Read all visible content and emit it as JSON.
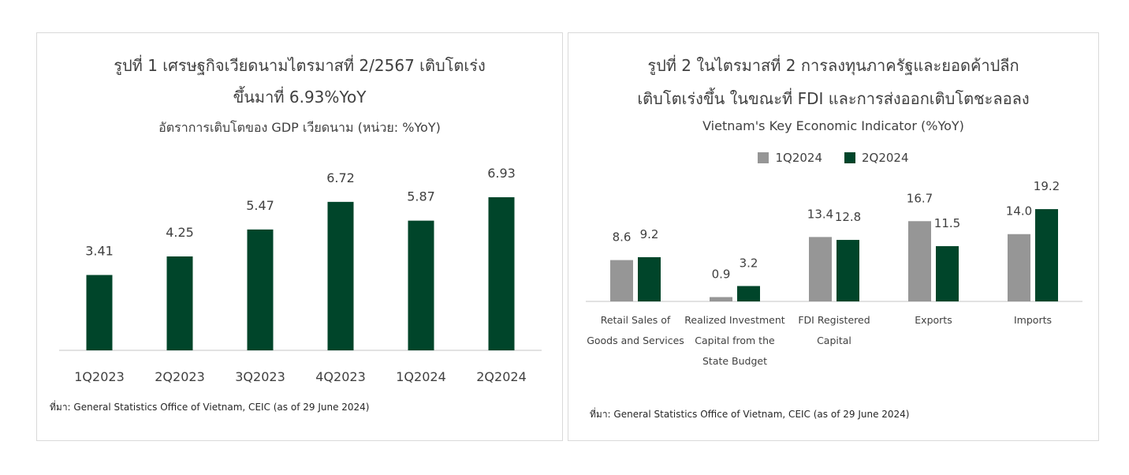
{
  "panel1": {
    "title_line1": "รูปที่ 1 เศรษฐกิจเวียดนามไตรมาสที่ 2/2567 เติบโตเร่ง",
    "title_line2": "ขึ้นมาที่ 6.93%YoY",
    "subtitle": "อัตราการเติบโตของ GDP เวียดนาม (หน่วย: %YoY)",
    "source": "ที่มา: General Statistics Office of Vietnam, CEIC (as of 29 June 2024)"
  },
  "panel2": {
    "title_line1": "รูปที่ 2 ในไตรมาสที่ 2 การลงทุนภาครัฐและยอดค้าปลีก",
    "title_line2": "เติบโตเร่งขึ้น ในขณะที่ FDI และการส่งออกเติบโตชะลอลง",
    "subtitle": "Vietnam's Key Economic Indicator (%YoY)",
    "source": "ที่มา: General Statistics Office of Vietnam, CEIC (as of 29 June 2024)"
  },
  "colors": {
    "green": "#00452a",
    "gray": "#969696",
    "axis": "#d9d9d9"
  },
  "chart_data": [
    {
      "type": "bar",
      "title": "อัตราการเติบโตของ GDP เวียดนาม (หน่วย: %YoY)",
      "categories": [
        "1Q2023",
        "2Q2023",
        "3Q2023",
        "4Q2023",
        "1Q2024",
        "2Q2024"
      ],
      "values": [
        3.41,
        4.25,
        5.47,
        6.72,
        5.87,
        6.93
      ],
      "data_labels": [
        "3.41",
        "4.25",
        "5.47",
        "6.72",
        "5.87",
        "6.93"
      ],
      "ylim": [
        0,
        7.5
      ],
      "grid": false
    },
    {
      "type": "bar",
      "title": "Vietnam's Key Economic Indicator (%YoY)",
      "categories": [
        [
          "Retail Sales of",
          "Goods and Services"
        ],
        [
          "Realized Investment",
          "Capital from the",
          "State Budget"
        ],
        [
          "FDI Registered",
          "Capital"
        ],
        [
          "Exports"
        ],
        [
          "Imports"
        ]
      ],
      "series": [
        {
          "name": "1Q2024",
          "values": [
            8.6,
            0.9,
            13.4,
            16.7,
            14.0
          ],
          "labels": [
            "8.6",
            "0.9",
            "13.4",
            "16.7",
            "14.0"
          ]
        },
        {
          "name": "2Q2024",
          "values": [
            9.2,
            3.2,
            12.8,
            11.5,
            19.2
          ],
          "labels": [
            "9.2",
            "3.2",
            "12.8",
            "11.5",
            "19.2"
          ]
        }
      ],
      "legend": "top",
      "ylim": [
        0,
        22
      ],
      "grid": false
    }
  ]
}
